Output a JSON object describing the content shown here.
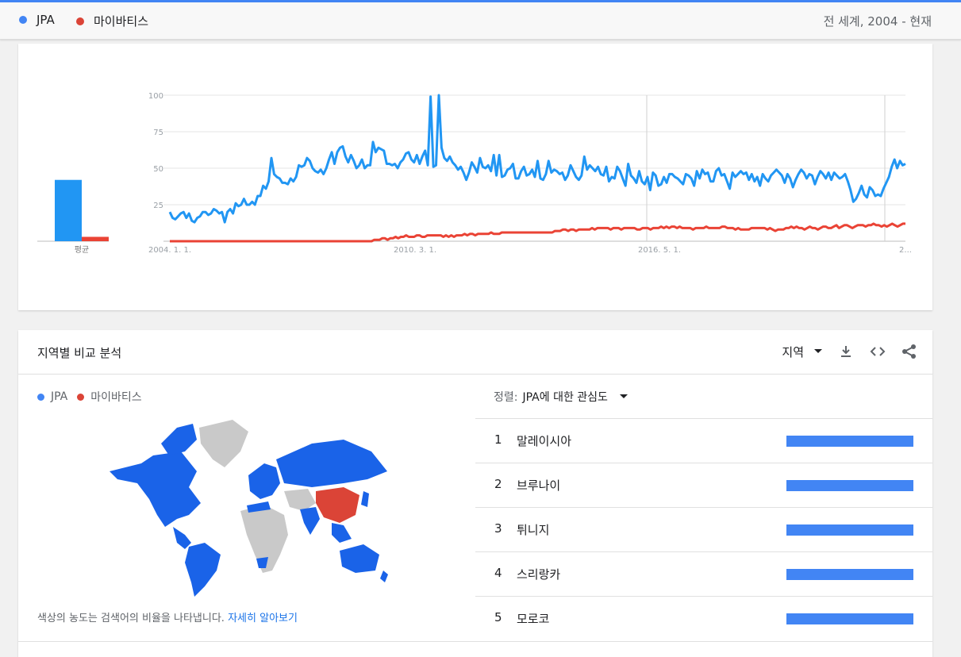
{
  "legend": {
    "series": [
      {
        "name": "JPA",
        "color": "#4285f4"
      },
      {
        "name": "마이바티스",
        "color": "#db4437"
      }
    ],
    "scope": "전 세계, 2004 - 현재"
  },
  "chart_data": {
    "type": "line",
    "ylim": [
      0,
      100
    ],
    "yticks": [
      "100",
      "75",
      "50",
      "25"
    ],
    "xticks": [
      "2004. 1. 1.",
      "2010. 3. 1.",
      "2016. 5. 1.",
      "2..."
    ],
    "average": {
      "label": "평균",
      "values": [
        42,
        3
      ]
    },
    "series": [
      {
        "name": "JPA",
        "color": "#2196f3",
        "values": [
          20,
          16,
          15,
          17,
          19,
          20,
          16,
          19,
          14,
          13,
          16,
          17,
          20,
          20,
          18,
          19,
          22,
          21,
          19,
          20,
          13,
          20,
          22,
          19,
          26,
          24,
          25,
          29,
          25,
          25,
          27,
          25,
          31,
          31,
          38,
          36,
          41,
          57,
          46,
          44,
          43,
          40,
          40,
          39,
          43,
          41,
          44,
          52,
          51,
          52,
          57,
          55,
          50,
          48,
          47,
          49,
          46,
          50,
          56,
          61,
          53,
          61,
          64,
          65,
          58,
          54,
          59,
          55,
          50,
          52,
          56,
          50,
          52,
          52,
          68,
          61,
          64,
          63,
          62,
          53,
          53,
          52,
          53,
          50,
          54,
          56,
          60,
          61,
          56,
          54,
          59,
          53,
          58,
          62,
          52,
          99,
          51,
          52,
          100,
          64,
          57,
          55,
          58,
          54,
          52,
          49,
          51,
          47,
          42,
          47,
          54,
          51,
          47,
          57,
          51,
          50,
          52,
          48,
          59,
          45,
          59,
          44,
          45,
          49,
          50,
          53,
          43,
          43,
          48,
          51,
          45,
          46,
          49,
          44,
          55,
          43,
          42,
          46,
          55,
          47,
          49,
          48,
          46,
          47,
          42,
          45,
          52,
          48,
          44,
          42,
          45,
          58,
          49,
          52,
          50,
          48,
          51,
          46,
          45,
          51,
          41,
          44,
          43,
          51,
          48,
          43,
          38,
          53,
          45,
          43,
          40,
          48,
          41,
          39,
          44,
          35,
          47,
          45,
          38,
          39,
          44,
          40,
          46,
          46,
          44,
          43,
          41,
          39,
          46,
          45,
          43,
          38,
          48,
          43,
          49,
          46,
          47,
          41,
          41,
          48,
          50,
          45,
          46,
          41,
          36,
          47,
          44,
          46,
          48,
          46,
          47,
          42,
          46,
          41,
          44,
          38,
          46,
          43,
          41,
          45,
          47,
          49,
          47,
          45,
          40,
          46,
          43,
          37,
          42,
          46,
          49,
          47,
          43,
          46,
          45,
          39,
          44,
          48,
          46,
          43,
          47,
          42,
          47,
          45,
          43,
          44,
          46,
          41,
          35,
          27,
          29,
          33,
          38,
          32,
          30,
          37,
          35,
          31,
          32,
          31,
          36,
          40,
          44,
          51,
          56,
          50,
          55,
          52,
          53
        ]
      },
      {
        "name": "마이바티스",
        "color": "#ea4335",
        "values": [
          0,
          0,
          0,
          0,
          0,
          0,
          0,
          0,
          0,
          0,
          0,
          0,
          0,
          0,
          0,
          0,
          0,
          0,
          0,
          0,
          0,
          0,
          0,
          0,
          0,
          0,
          0,
          0,
          0,
          0,
          0,
          0,
          0,
          0,
          0,
          0,
          0,
          0,
          0,
          0,
          0,
          0,
          0,
          0,
          0,
          0,
          0,
          0,
          0,
          0,
          0,
          0,
          0,
          0,
          0,
          0,
          0,
          0,
          0,
          0,
          0,
          0,
          0,
          0,
          0,
          0,
          0,
          0,
          0,
          0,
          0,
          0,
          0,
          0,
          0,
          0,
          0,
          1,
          1,
          1,
          2,
          2,
          1,
          2,
          2,
          3,
          2,
          3,
          3,
          4,
          3,
          3,
          3,
          4,
          4,
          3,
          3,
          4,
          4,
          4,
          4,
          4,
          4,
          3,
          4,
          3,
          4,
          3,
          4,
          4,
          4,
          5,
          4,
          5,
          5,
          4,
          5,
          5,
          5,
          5,
          5,
          6,
          5,
          5,
          5,
          6,
          6,
          6,
          6,
          6,
          6,
          6,
          6,
          6,
          6,
          6,
          6,
          6,
          6,
          6,
          6,
          6,
          6,
          6,
          6,
          7,
          7,
          7,
          8,
          8,
          7,
          8,
          8,
          7,
          8,
          8,
          8,
          8,
          8,
          9,
          8,
          9,
          9,
          9,
          9,
          9,
          8,
          9,
          9,
          9,
          8,
          9,
          9,
          9,
          9,
          9,
          8,
          8,
          9,
          9,
          9,
          8,
          9,
          9,
          9,
          10,
          9,
          10,
          9,
          10,
          10,
          9,
          10,
          9,
          9,
          9,
          9,
          8,
          9,
          9,
          9,
          9,
          10,
          9,
          9,
          9,
          9,
          9,
          10,
          10,
          9,
          9,
          9,
          8,
          9,
          8,
          8,
          8,
          8,
          9,
          9,
          9,
          9,
          9,
          9,
          8,
          9,
          8,
          7,
          8,
          8,
          8,
          9,
          9,
          10,
          9,
          10,
          9,
          9,
          8,
          9,
          10,
          9,
          9,
          8,
          9,
          10,
          10,
          9,
          9,
          10,
          11,
          9,
          10,
          11,
          11,
          10,
          9,
          10,
          11,
          11,
          11,
          10,
          11,
          11,
          12,
          11,
          11,
          10,
          11,
          10,
          11,
          12,
          11,
          10,
          11,
          12,
          12
        ]
      }
    ]
  },
  "region": {
    "title": "지역별 비교 분석",
    "dropdown_label": "지역",
    "icons": [
      "download-icon",
      "embed-code-icon",
      "share-icon"
    ],
    "map_legend": [
      "JPA",
      "마이바티스"
    ],
    "map_note": "색상의 농도는 검색어의 비율을 나타냅니다.",
    "map_note_link": "자세히 알아보기",
    "sort_label": "정렬:",
    "sort_value": "JPA에 대한 관심도",
    "rows": [
      {
        "rank": "1",
        "name": "말레이시아",
        "fraction": 1.0
      },
      {
        "rank": "2",
        "name": "브루나이",
        "fraction": 1.0
      },
      {
        "rank": "3",
        "name": "튀니지",
        "fraction": 1.0
      },
      {
        "rank": "4",
        "name": "스리랑카",
        "fraction": 1.0
      },
      {
        "rank": "5",
        "name": "모로코",
        "fraction": 1.0
      }
    ]
  }
}
